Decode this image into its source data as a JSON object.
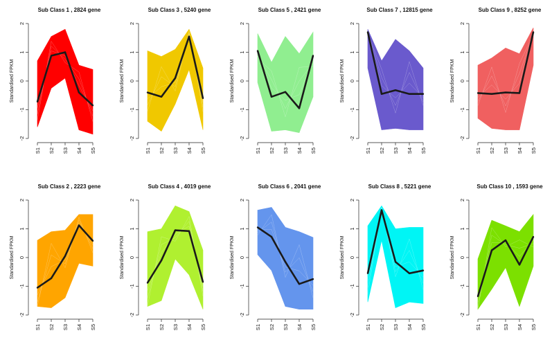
{
  "chart_data": {
    "type": "line",
    "x_categories": [
      "S1",
      "S2",
      "S3",
      "S4",
      "S5"
    ],
    "y_ticks": [
      "2",
      "1",
      "0",
      "-1",
      "-2"
    ],
    "ylim": [
      -2,
      2
    ],
    "ylabel": "Standardised FPKM",
    "panels": [
      {
        "title": "Sub Class  1 , 2824 gene",
        "color": "#ff0000",
        "mean": [
          -0.72,
          0.88,
          1.0,
          -0.4,
          -0.85
        ],
        "upper": [
          0.7,
          1.55,
          1.8,
          0.55,
          0.4
        ],
        "lower": [
          -1.6,
          -0.25,
          0.1,
          -1.7,
          -1.85
        ]
      },
      {
        "title": "Sub Class  3 , 5240 gene",
        "color": "#f0c800",
        "mean": [
          -0.4,
          -0.55,
          0.1,
          1.55,
          -0.6
        ],
        "upper": [
          1.05,
          0.85,
          1.1,
          1.8,
          0.45
        ],
        "lower": [
          -1.4,
          -1.75,
          -0.8,
          0.4,
          -1.7
        ]
      },
      {
        "title": "Sub Class  5 , 2421 gene",
        "color": "#90ee90",
        "mean": [
          1.05,
          -0.55,
          -0.38,
          -0.95,
          0.88
        ],
        "upper": [
          1.65,
          0.65,
          1.55,
          0.95,
          1.7
        ],
        "lower": [
          -0.05,
          -1.75,
          -1.7,
          -1.8,
          -0.55
        ]
      },
      {
        "title": "Sub Class  7 , 12815 gene",
        "color": "#6a5acd",
        "mean": [
          1.7,
          -0.45,
          -0.32,
          -0.45,
          -0.45
        ],
        "upper": [
          1.8,
          0.7,
          1.45,
          1.05,
          0.45
        ],
        "lower": [
          0.45,
          -1.7,
          -1.65,
          -1.7,
          -1.7
        ]
      },
      {
        "title": "Sub Class  9 , 8252 gene",
        "color": "#f06060",
        "mean": [
          -0.42,
          -0.45,
          -0.4,
          -0.42,
          1.7
        ],
        "upper": [
          0.55,
          0.8,
          1.15,
          0.95,
          1.85
        ],
        "lower": [
          -1.3,
          -1.65,
          -1.7,
          -1.7,
          0.55
        ]
      },
      {
        "title": "Sub Class  2 , 2223 gene",
        "color": "#ffa500",
        "mean": [
          -1.05,
          -0.72,
          0.05,
          1.12,
          0.58
        ],
        "upper": [
          0.6,
          0.9,
          0.95,
          1.5,
          1.5
        ],
        "lower": [
          -1.7,
          -1.75,
          -1.4,
          -0.2,
          -0.3
        ]
      },
      {
        "title": "Sub Class  4 , 4019 gene",
        "color": "#b0f030",
        "mean": [
          -0.88,
          -0.1,
          0.95,
          0.92,
          -0.85
        ],
        "upper": [
          0.9,
          1.0,
          1.8,
          1.6,
          0.25
        ],
        "lower": [
          -1.7,
          -1.5,
          -0.05,
          -0.6,
          -1.8
        ]
      },
      {
        "title": "Sub Class  6 , 2041 gene",
        "color": "#6495ed",
        "mean": [
          1.05,
          0.72,
          -0.15,
          -0.92,
          -0.75
        ],
        "upper": [
          1.65,
          1.75,
          1.05,
          0.9,
          0.7
        ],
        "lower": [
          0.1,
          -0.45,
          -1.7,
          -1.8,
          -1.8
        ]
      },
      {
        "title": "Sub Class  8 , 5221 gene",
        "color": "#00f5f5",
        "mean": [
          -0.55,
          1.65,
          -0.15,
          -0.55,
          -0.45
        ],
        "upper": [
          1.1,
          1.8,
          1.0,
          1.05,
          1.05
        ],
        "lower": [
          -1.55,
          0.6,
          -1.75,
          -1.55,
          -1.6
        ]
      },
      {
        "title": "Sub Class  10 , 1593 gene",
        "color": "#7ce000",
        "mean": [
          -1.35,
          0.25,
          0.6,
          -0.25,
          0.72
        ],
        "upper": [
          -0.05,
          1.3,
          1.1,
          0.9,
          1.5
        ],
        "lower": [
          -1.8,
          -1.1,
          -0.35,
          -1.7,
          -0.3
        ]
      }
    ]
  }
}
